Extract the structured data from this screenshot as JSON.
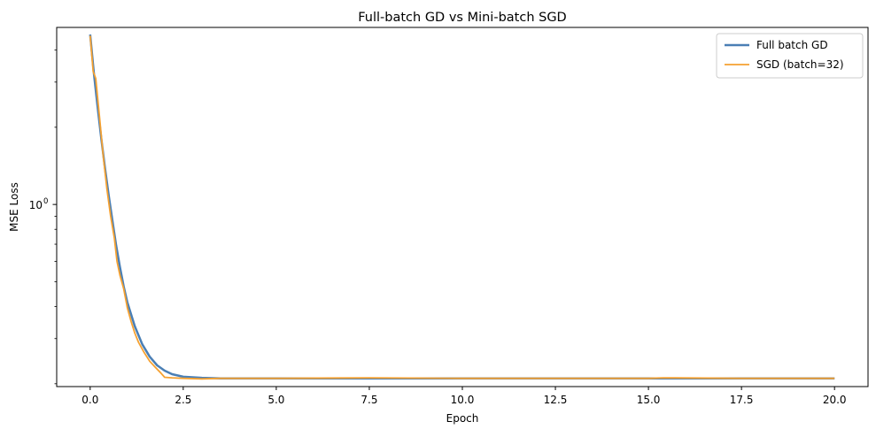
{
  "chart_data": {
    "type": "line",
    "title": "Full-batch GD vs Mini-batch SGD",
    "xlabel": "Epoch",
    "ylabel": "MSE Loss",
    "y_scale": "log",
    "xlim": [
      -0.9,
      20.9
    ],
    "ylim": [
      0.195,
      4.9
    ],
    "x_ticks": [
      0,
      2.5,
      5,
      7.5,
      10,
      12.5,
      15,
      17.5,
      20
    ],
    "x_tick_labels": [
      "0.0",
      "2.5",
      "5.0",
      "7.5",
      "10.0",
      "12.5",
      "15.0",
      "17.5",
      "20.0"
    ],
    "y_major_ticks": [
      1
    ],
    "y_tick_base": "10",
    "y_tick_exp": "0",
    "y_minor_ticks": [
      0.2,
      0.3,
      0.4,
      0.5,
      0.6,
      0.7,
      0.8,
      0.9,
      2,
      3,
      4
    ],
    "grid": false,
    "legend_position": "top-right",
    "series": [
      {
        "name": "Full batch GD",
        "color": "#4a7fb5",
        "x": [
          0,
          0.1,
          0.2,
          0.3,
          0.4,
          0.5,
          0.6,
          0.7,
          0.8,
          0.9,
          1.0,
          1.2,
          1.4,
          1.6,
          1.8,
          2.0,
          2.2,
          2.5,
          3.0,
          3.5,
          4,
          5,
          7.5,
          10,
          12.5,
          15,
          17.5,
          20
        ],
        "y": [
          4.6,
          3.25,
          2.4,
          1.8,
          1.38,
          1.08,
          0.86,
          0.69,
          0.57,
          0.48,
          0.415,
          0.335,
          0.285,
          0.255,
          0.236,
          0.225,
          0.218,
          0.213,
          0.211,
          0.21,
          0.21,
          0.21,
          0.21,
          0.21,
          0.21,
          0.21,
          0.21,
          0.21
        ]
      },
      {
        "name": "SGD (batch=32)",
        "color": "#f5a131",
        "x": [
          0,
          0.08,
          0.15,
          0.25,
          0.35,
          0.45,
          0.55,
          0.65,
          0.72,
          0.8,
          0.9,
          1.0,
          1.1,
          1.2,
          1.3,
          1.45,
          1.6,
          1.75,
          1.9,
          2.0,
          2.2,
          2.5,
          3.0,
          3.5,
          4,
          5,
          7.5,
          10,
          12.5,
          15,
          15.4,
          17.5,
          20
        ],
        "y": [
          4.55,
          3.3,
          3.1,
          2.2,
          1.55,
          1.15,
          0.9,
          0.74,
          0.6,
          0.53,
          0.47,
          0.395,
          0.35,
          0.315,
          0.29,
          0.265,
          0.245,
          0.232,
          0.22,
          0.212,
          0.211,
          0.21,
          0.209,
          0.21,
          0.21,
          0.21,
          0.211,
          0.21,
          0.21,
          0.21,
          0.211,
          0.21,
          0.21
        ]
      }
    ]
  }
}
